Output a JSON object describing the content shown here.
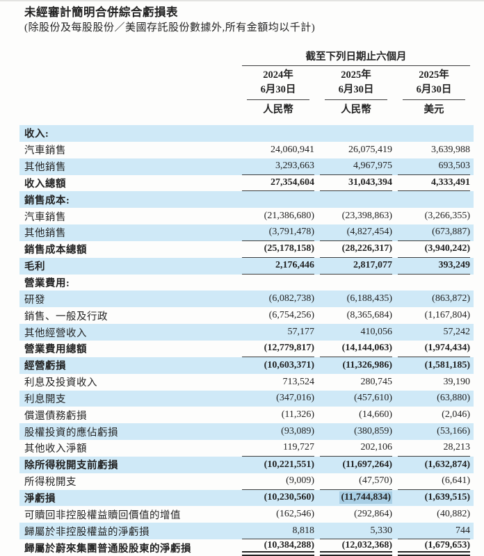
{
  "page": {
    "title": "未經審計簡明合併綜合虧損表",
    "subtitle": "(除股份及每股股份／美國存託股份數據外,所有金額均以千計)"
  },
  "table": {
    "period_header": "截至下列日期止六個月",
    "columns": [
      {
        "year": "2024年",
        "date": "6月30日",
        "currency": "人民幣"
      },
      {
        "year": "2025年",
        "date": "6月30日",
        "currency": "人民幣"
      },
      {
        "year": "2025年",
        "date": "6月30日",
        "currency": "美元"
      }
    ],
    "rows": [
      {
        "label": "收入:",
        "c1": "",
        "c2": "",
        "c3": ""
      },
      {
        "label": "汽車銷售",
        "c1": "24,060,941",
        "c2": "26,075,419",
        "c3": "3,639,988"
      },
      {
        "label": "其他銷售",
        "c1": "3,293,663",
        "c2": "4,967,975",
        "c3": "693,503"
      },
      {
        "label": "收入總額",
        "c1": "27,354,604",
        "c2": "31,043,394",
        "c3": "4,333,491"
      },
      {
        "label": "銷售成本:",
        "c1": "",
        "c2": "",
        "c3": ""
      },
      {
        "label": "汽車銷售",
        "c1": "(21,386,680)",
        "c2": "(23,398,863)",
        "c3": "(3,266,355)"
      },
      {
        "label": "其他銷售",
        "c1": "(3,791,478)",
        "c2": "(4,827,454)",
        "c3": "(673,887)"
      },
      {
        "label": "銷售成本總額",
        "c1": "(25,178,158)",
        "c2": "(28,226,317)",
        "c3": "(3,940,242)"
      },
      {
        "label": "毛利",
        "c1": "2,176,446",
        "c2": "2,817,077",
        "c3": "393,249"
      },
      {
        "label": "營業費用:",
        "c1": "",
        "c2": "",
        "c3": ""
      },
      {
        "label": "研發",
        "c1": "(6,082,738)",
        "c2": "(6,188,435)",
        "c3": "(863,872)"
      },
      {
        "label": "銷售、一般及行政",
        "c1": "(6,754,256)",
        "c2": "(8,365,684)",
        "c3": "(1,167,804)"
      },
      {
        "label": "其他經營收入",
        "c1": "57,177",
        "c2": "410,056",
        "c3": "57,242"
      },
      {
        "label": "營業費用總額",
        "c1": "(12,779,817)",
        "c2": "(14,144,063)",
        "c3": "(1,974,434)"
      },
      {
        "label": "經營虧損",
        "c1": "(10,603,371)",
        "c2": "(11,326,986)",
        "c3": "(1,581,185)"
      },
      {
        "label": "利息及投資收入",
        "c1": "713,524",
        "c2": "280,745",
        "c3": "39,190"
      },
      {
        "label": "利息開支",
        "c1": "(347,016)",
        "c2": "(457,610)",
        "c3": "(63,880)"
      },
      {
        "label": "償還債務虧損",
        "c1": "(11,326)",
        "c2": "(14,660)",
        "c3": "(2,046)"
      },
      {
        "label": "股權投資的應佔虧損",
        "c1": "(93,089)",
        "c2": "(380,859)",
        "c3": "(53,166)"
      },
      {
        "label": "其他收入淨額",
        "c1": "119,727",
        "c2": "202,106",
        "c3": "28,213"
      },
      {
        "label": "除所得稅開支前虧損",
        "c1": "(10,221,551)",
        "c2": "(11,697,264)",
        "c3": "(1,632,874)"
      },
      {
        "label": "所得稅開支",
        "c1": "(9,009)",
        "c2": "(47,570)",
        "c3": "(6,641)"
      },
      {
        "label": "淨虧損",
        "c1": "(10,230,560)",
        "c2": "(11,744,834)",
        "c3": "(1,639,515)"
      },
      {
        "label": "可贖回非控股權益贖回價值的增值",
        "c1": "(162,546)",
        "c2": "(292,864)",
        "c3": "(40,882)"
      },
      {
        "label": "歸屬於非控股權益的淨虧損",
        "c1": "8,818",
        "c2": "5,330",
        "c3": "744"
      },
      {
        "label": "歸屬於蔚來集團普通股股東的淨虧損",
        "c1": "(10,384,288)",
        "c2": "(12,032,368)",
        "c3": "(1,679,653)"
      }
    ]
  },
  "colors": {
    "row_stripe": "#cfe9f7",
    "selection_highlight": "#a9cfe5",
    "rule_line": "#3c3c3c",
    "text": "#222222"
  }
}
